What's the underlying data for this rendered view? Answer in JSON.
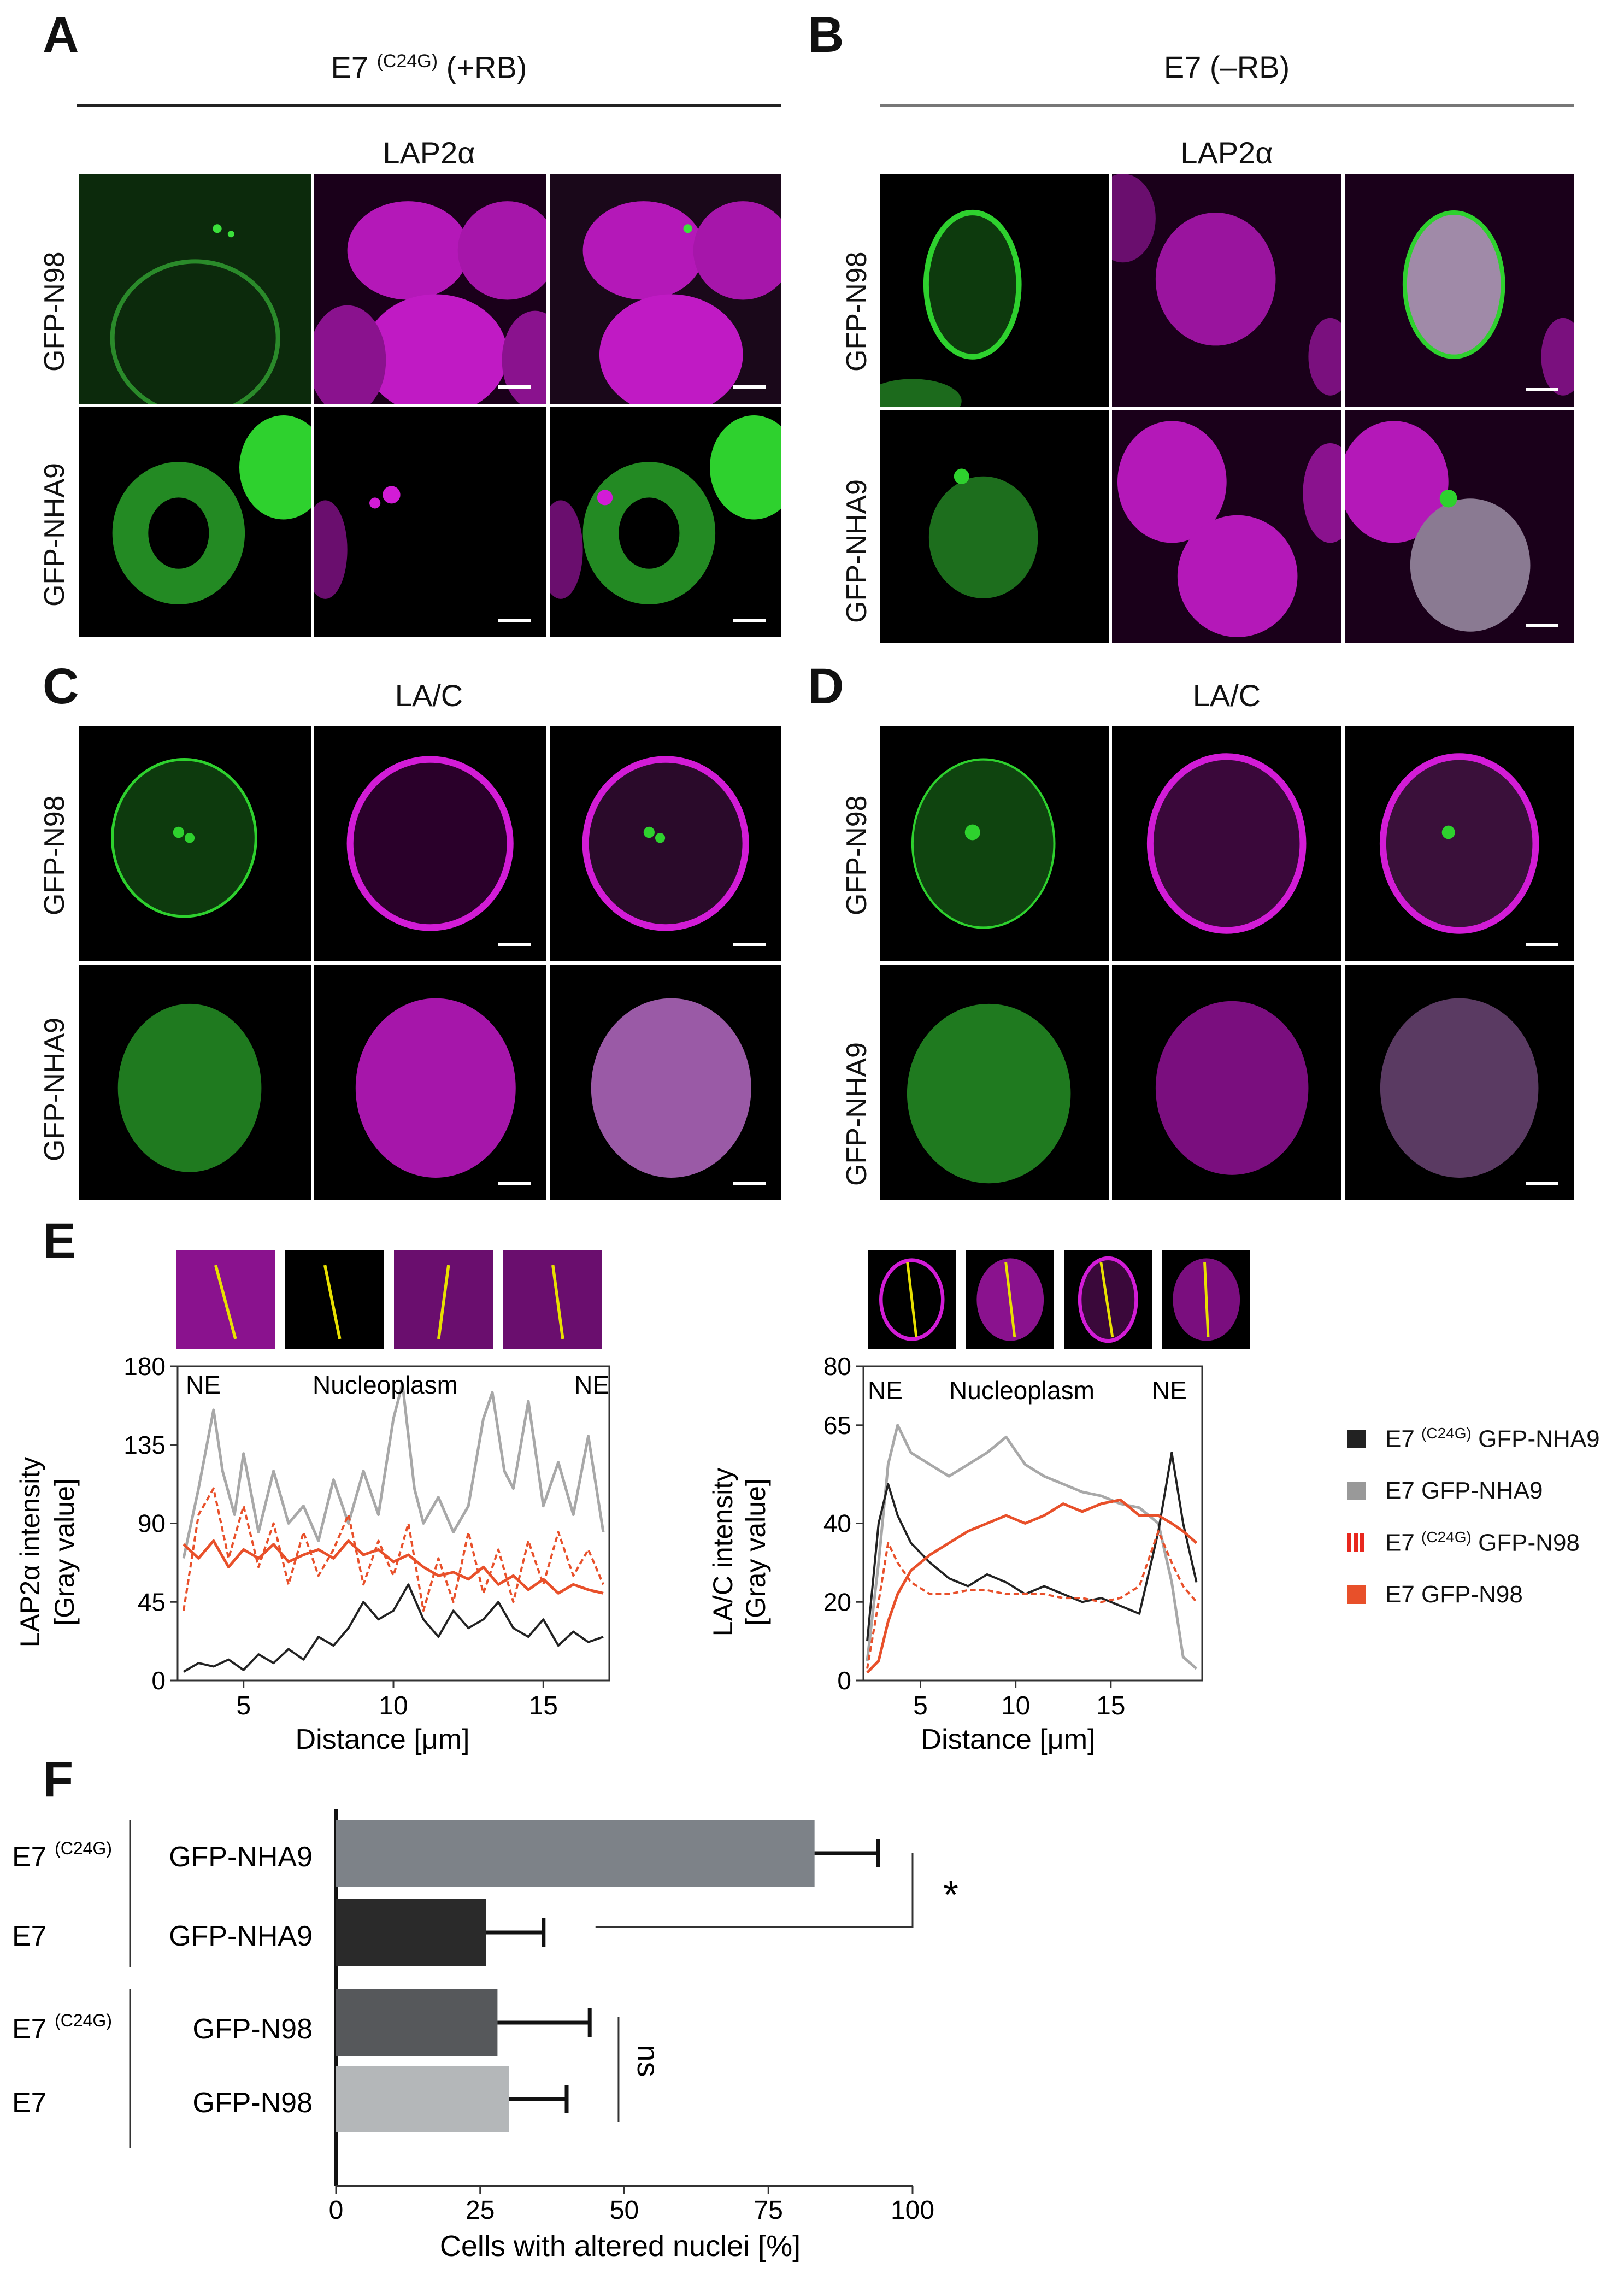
{
  "panels": {
    "A": {
      "letter": "A",
      "condition": "E7 (+RB)",
      "condition_base": "E7 ",
      "condition_sup": "(C24G)",
      "condition_tail": " (+RB)",
      "marker": "LAP2α",
      "rows": [
        "GFP-N98",
        "GFP-NHA9"
      ]
    },
    "B": {
      "letter": "B",
      "condition": "E7 (–RB)",
      "marker": "LAP2α",
      "rows": [
        "GFP-N98",
        "GFP-NHA9"
      ]
    },
    "C": {
      "letter": "C",
      "marker": "LA/C",
      "rows": [
        "GFP-N98",
        "GFP-NHA9"
      ]
    },
    "D": {
      "letter": "D",
      "marker": "LA/C",
      "rows": [
        "GFP-N98",
        "GFP-NHA9"
      ]
    },
    "E": {
      "letter": "E"
    },
    "F": {
      "letter": "F"
    }
  },
  "colors": {
    "green": "#2ed12e",
    "magenta": "#d21cd6",
    "black": "#222222",
    "gray": "#a8a8a8",
    "red": "#e8502a",
    "bar_dark": "#2a2a2a",
    "bar_gray": "#7d8288",
    "bar_mid": "#56585b",
    "bar_light": "#b4b7b9"
  },
  "chart_data": [
    {
      "type": "line",
      "title": "",
      "xlabel": "Distance [μm]",
      "ylabel": "LAP2α intensity [Gray value]",
      "ylabel_line1": "LAP2α intensity",
      "ylabel_line2": "[Gray value]",
      "annotations": [
        "NE",
        "Nucleoplasm",
        "NE"
      ],
      "xlim": [
        2.8,
        17.2
      ],
      "ylim": [
        0,
        180
      ],
      "xticks": [
        5,
        10,
        15
      ],
      "yticks": [
        0,
        45,
        90,
        135,
        180
      ],
      "series": [
        {
          "name": "E7 GFP-NHA9",
          "style": "gray",
          "x": [
            3,
            3.5,
            4,
            4.3,
            4.7,
            5,
            5.5,
            6,
            6.5,
            7,
            7.5,
            8,
            8.5,
            9,
            9.5,
            10,
            10.3,
            10.7,
            11,
            11.5,
            12,
            12.5,
            13,
            13.3,
            13.7,
            14,
            14.5,
            15,
            15.5,
            16,
            16.5,
            17
          ],
          "y": [
            70,
            110,
            155,
            120,
            95,
            130,
            85,
            120,
            90,
            100,
            80,
            115,
            90,
            120,
            95,
            150,
            170,
            110,
            90,
            105,
            85,
            100,
            150,
            165,
            120,
            110,
            160,
            100,
            125,
            95,
            140,
            85
          ]
        },
        {
          "name": "E7 (C24G) GFP-N98",
          "style": "red-dashed",
          "x": [
            3,
            3.5,
            4,
            4.5,
            5,
            5.5,
            6,
            6.5,
            7,
            7.5,
            8,
            8.5,
            9,
            9.5,
            10,
            10.5,
            11,
            11.5,
            12,
            12.5,
            13,
            13.5,
            14,
            14.5,
            15,
            15.5,
            16,
            16.5,
            17
          ],
          "y": [
            40,
            95,
            110,
            70,
            100,
            65,
            90,
            55,
            85,
            60,
            75,
            95,
            55,
            80,
            60,
            90,
            40,
            70,
            45,
            85,
            50,
            75,
            45,
            80,
            55,
            85,
            60,
            75,
            55
          ]
        },
        {
          "name": "E7 GFP-N98",
          "style": "red",
          "x": [
            3,
            3.5,
            4,
            4.5,
            5,
            5.5,
            6,
            6.5,
            7,
            7.5,
            8,
            8.5,
            9,
            9.5,
            10,
            10.5,
            11,
            11.5,
            12,
            12.5,
            13,
            13.5,
            14,
            14.5,
            15,
            15.5,
            16,
            16.5,
            17
          ],
          "y": [
            78,
            70,
            80,
            65,
            75,
            70,
            78,
            68,
            72,
            75,
            70,
            80,
            72,
            75,
            68,
            72,
            65,
            60,
            62,
            58,
            65,
            55,
            60,
            52,
            58,
            50,
            55,
            52,
            50
          ]
        },
        {
          "name": "E7 (C24G) GFP-NHA9",
          "style": "black",
          "x": [
            3,
            3.5,
            4,
            4.5,
            5,
            5.5,
            6,
            6.5,
            7,
            7.5,
            8,
            8.5,
            9,
            9.5,
            10,
            10.5,
            11,
            11.5,
            12,
            12.5,
            13,
            13.5,
            14,
            14.5,
            15,
            15.5,
            16,
            16.5,
            17
          ],
          "y": [
            5,
            10,
            8,
            12,
            6,
            15,
            10,
            18,
            12,
            25,
            20,
            30,
            45,
            35,
            40,
            55,
            35,
            25,
            40,
            30,
            35,
            45,
            30,
            25,
            35,
            20,
            28,
            22,
            25
          ]
        }
      ]
    },
    {
      "type": "line",
      "title": "",
      "xlabel": "Distance [μm]",
      "ylabel": "LA/C intensity [Gray value]",
      "ylabel_line1": "LA/C intensity",
      "ylabel_line2": "[Gray value]",
      "annotations": [
        "NE",
        "Nucleoplasm",
        "NE"
      ],
      "xlim": [
        2,
        19.8
      ],
      "ylim": [
        0,
        80
      ],
      "xticks": [
        5,
        10,
        15
      ],
      "yticks": [
        0,
        20,
        40,
        65,
        80
      ],
      "legend": [
        "E7 (C24G) GFP-NHA9",
        "E7 GFP-NHA9",
        "E7 (C24G) GFP-N98",
        "E7 GFP-N98"
      ],
      "legend_base": [
        "E7 ",
        "E7 GFP-NHA9",
        "E7 ",
        "E7 GFP-N98"
      ],
      "legend_sup": [
        "(C24G)",
        "",
        "(C24G)",
        ""
      ],
      "legend_tail": [
        " GFP-NHA9",
        "",
        " GFP-N98",
        ""
      ],
      "series": [
        {
          "name": "E7 GFP-NHA9",
          "style": "gray",
          "x": [
            2.2,
            2.8,
            3.3,
            3.8,
            4.5,
            5.5,
            6.5,
            7.5,
            8.5,
            9.5,
            10.5,
            11.5,
            12.5,
            13.5,
            14.5,
            15.5,
            16.5,
            17.5,
            18.2,
            18.8,
            19.5
          ],
          "y": [
            5,
            30,
            55,
            65,
            58,
            55,
            52,
            55,
            58,
            62,
            55,
            52,
            50,
            48,
            47,
            45,
            44,
            40,
            25,
            6,
            3
          ]
        },
        {
          "name": "E7 (C24G) GFP-NHA9",
          "style": "black",
          "x": [
            2.2,
            2.8,
            3.3,
            3.8,
            4.5,
            5.5,
            6.5,
            7.5,
            8.5,
            9.5,
            10.5,
            11.5,
            12.5,
            13.5,
            14.5,
            15.5,
            16.5,
            17.5,
            18.2,
            18.8,
            19.5
          ],
          "y": [
            10,
            40,
            50,
            42,
            35,
            30,
            26,
            24,
            27,
            25,
            22,
            24,
            22,
            20,
            21,
            19,
            17,
            38,
            58,
            40,
            25
          ]
        },
        {
          "name": "E7 (C24G) GFP-N98",
          "style": "red-dashed",
          "x": [
            2.2,
            2.8,
            3.3,
            3.8,
            4.5,
            5.5,
            6.5,
            7.5,
            8.5,
            9.5,
            10.5,
            11.5,
            12.5,
            13.5,
            14.5,
            15.5,
            16.5,
            17.5,
            18.2,
            18.8,
            19.5
          ],
          "y": [
            3,
            20,
            35,
            30,
            25,
            22,
            22,
            23,
            23,
            22,
            22,
            22,
            21,
            21,
            20,
            21,
            24,
            38,
            30,
            24,
            20
          ]
        },
        {
          "name": "E7 GFP-N98",
          "style": "red",
          "x": [
            2.2,
            2.8,
            3.3,
            3.8,
            4.5,
            5.5,
            6.5,
            7.5,
            8.5,
            9.5,
            10.5,
            11.5,
            12.5,
            13.5,
            14.5,
            15.5,
            16.5,
            17.5,
            18.2,
            18.8,
            19.5
          ],
          "y": [
            2,
            5,
            15,
            22,
            28,
            32,
            35,
            38,
            40,
            42,
            40,
            42,
            45,
            43,
            45,
            46,
            42,
            42,
            40,
            38,
            35
          ]
        }
      ]
    },
    {
      "type": "bar",
      "orientation": "horizontal",
      "xlabel": "Cells with altered nuclei [%]",
      "xlim": [
        0,
        100
      ],
      "xticks": [
        0,
        25,
        50,
        75,
        100
      ],
      "categories": [
        "E7 (C24G) GFP-NHA9",
        "E7 GFP-NHA9",
        "E7 (C24G) GFP-N98",
        "E7 GFP-N98"
      ],
      "group_label_base": [
        "E7 ",
        "E7",
        "E7 ",
        "E7"
      ],
      "group_label_sup": [
        "(C24G)",
        "",
        "(C24G)",
        ""
      ],
      "construct_labels": [
        "GFP-NHA9",
        "GFP-NHA9",
        "GFP-N98",
        "GFP-N98"
      ],
      "values": [
        83,
        26,
        28,
        30
      ],
      "errors": [
        11,
        10,
        16,
        10
      ],
      "significance": [
        {
          "pair": [
            0,
            1
          ],
          "label": "*"
        },
        {
          "pair": [
            2,
            3
          ],
          "label": "ns"
        }
      ]
    }
  ]
}
